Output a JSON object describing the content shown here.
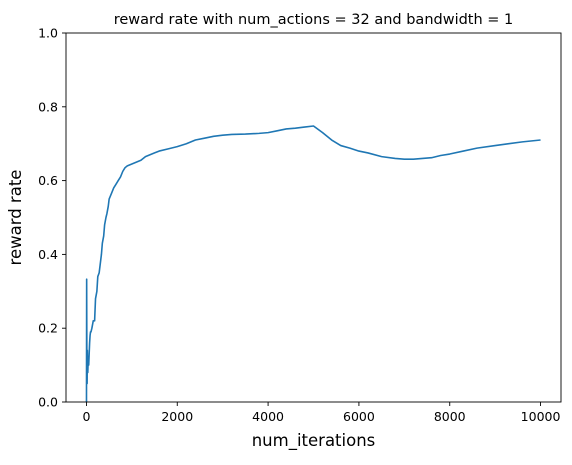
{
  "chart_data": {
    "type": "line",
    "title": "reward rate with num_actions = 32 and bandwidth = 1",
    "xlabel": "num_iterations",
    "ylabel": "reward rate",
    "xlim": [
      -450,
      10450
    ],
    "ylim": [
      0,
      1
    ],
    "xticks": [
      0,
      2000,
      4000,
      6000,
      8000,
      10000
    ],
    "xtick_labels": [
      "0",
      "2000",
      "4000",
      "6000",
      "8000",
      "10000"
    ],
    "yticks": [
      0,
      0.2,
      0.4,
      0.6,
      0.8,
      1.0
    ],
    "ytick_labels": [
      "0.0",
      "0.2",
      "0.4",
      "0.6",
      "0.8",
      "1.0"
    ],
    "grid": false,
    "series": [
      {
        "color": "#1f77b4",
        "x": [
          1,
          5,
          10,
          15,
          20,
          30,
          40,
          50,
          60,
          70,
          80,
          90,
          100,
          120,
          150,
          180,
          200,
          230,
          250,
          280,
          300,
          330,
          350,
          380,
          400,
          430,
          450,
          480,
          500,
          550,
          600,
          650,
          700,
          750,
          800,
          850,
          900,
          1000,
          1100,
          1200,
          1300,
          1400,
          1500,
          1600,
          1800,
          2000,
          2200,
          2400,
          2600,
          2800,
          3000,
          3200,
          3500,
          3800,
          4000,
          4200,
          4400,
          4600,
          4800,
          5000,
          5200,
          5400,
          5600,
          5800,
          6000,
          6200,
          6500,
          6800,
          7000,
          7200,
          7400,
          7600,
          7800,
          8000,
          8300,
          8600,
          9000,
          9300,
          9600,
          10000
        ],
        "values": [
          0.0,
          0.333,
          0.1,
          0.05,
          0.14,
          0.08,
          0.12,
          0.1,
          0.13,
          0.16,
          0.18,
          0.19,
          0.19,
          0.2,
          0.22,
          0.22,
          0.28,
          0.3,
          0.34,
          0.35,
          0.37,
          0.4,
          0.43,
          0.45,
          0.48,
          0.5,
          0.51,
          0.53,
          0.55,
          0.565,
          0.58,
          0.59,
          0.6,
          0.61,
          0.625,
          0.635,
          0.64,
          0.645,
          0.65,
          0.655,
          0.665,
          0.67,
          0.675,
          0.68,
          0.686,
          0.692,
          0.7,
          0.71,
          0.715,
          0.72,
          0.723,
          0.725,
          0.726,
          0.728,
          0.73,
          0.735,
          0.74,
          0.742,
          0.745,
          0.748,
          0.73,
          0.71,
          0.695,
          0.688,
          0.68,
          0.675,
          0.665,
          0.66,
          0.658,
          0.658,
          0.66,
          0.662,
          0.668,
          0.672,
          0.68,
          0.688,
          0.695,
          0.7,
          0.705,
          0.71
        ]
      }
    ]
  }
}
